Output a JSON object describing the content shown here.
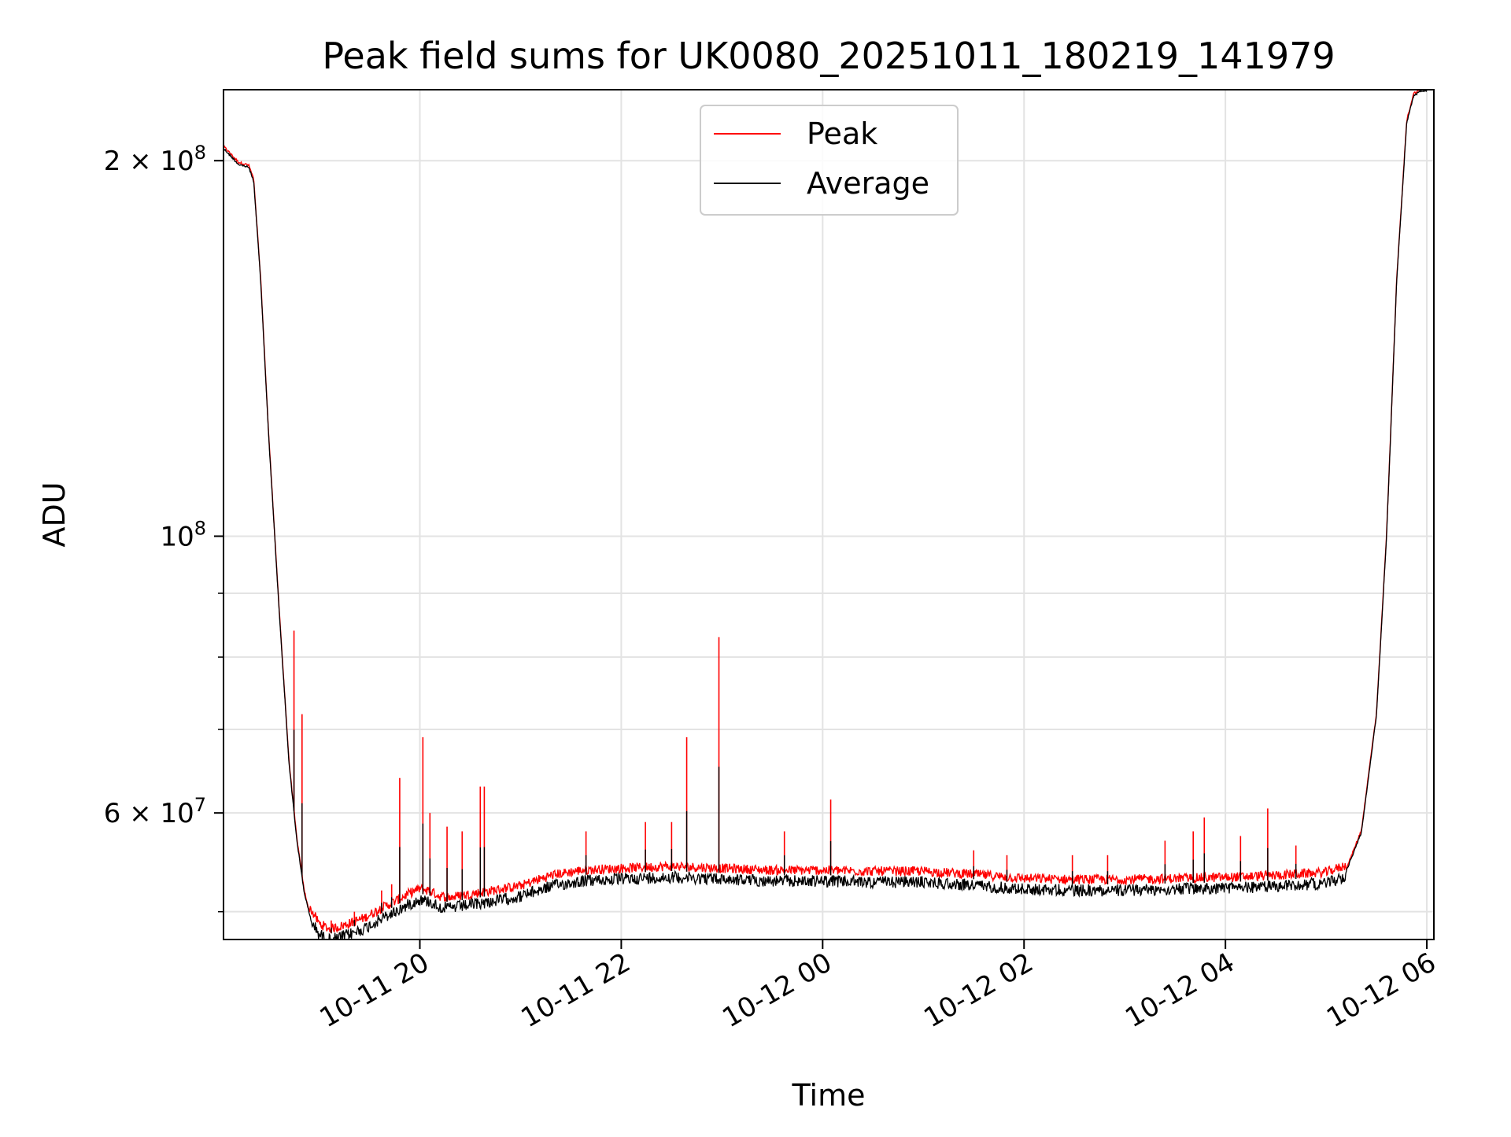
{
  "chart_data": {
    "type": "line",
    "title": "Peak field sums for UK0080_20251011_180219_141979",
    "xlabel": "Time",
    "ylabel": "ADU",
    "yscale": "log",
    "xlim": [
      18.05,
      30.07
    ],
    "ylim": [
      47500000,
      228000000
    ],
    "grid": true,
    "legend_position": "top-center",
    "x_ticks": [
      {
        "value": 20,
        "label": "10-11 20"
      },
      {
        "value": 22,
        "label": "10-11 22"
      },
      {
        "value": 24,
        "label": "10-12 00"
      },
      {
        "value": 26,
        "label": "10-12 02"
      },
      {
        "value": 28,
        "label": "10-12 04"
      },
      {
        "value": 30,
        "label": "10-12 06"
      }
    ],
    "y_ticks_major": [
      {
        "value": 60000000,
        "base": "6",
        "exp": "7"
      },
      {
        "value": 100000000,
        "base": "",
        "exp": "8"
      },
      {
        "value": 200000000,
        "base": "2",
        "exp": "8"
      }
    ],
    "y_ticks_minor": [
      50000000,
      70000000,
      80000000,
      90000000
    ],
    "average_baseline": {
      "x": [
        18.05,
        18.1,
        18.2,
        18.3,
        18.35,
        18.42,
        18.5,
        18.6,
        18.7,
        18.78,
        18.85,
        18.9,
        19.0,
        19.1,
        19.2,
        19.3,
        19.45,
        19.6,
        19.75,
        19.9,
        20.0,
        20.1,
        20.2,
        20.3,
        20.5,
        20.7,
        21.0,
        21.3,
        21.6,
        22.0,
        22.5,
        23.0,
        23.5,
        24.0,
        24.5,
        25.0,
        25.5,
        26.0,
        26.5,
        27.0,
        27.5,
        28.0,
        28.5,
        29.0,
        29.2,
        29.35,
        29.5,
        29.6,
        29.7,
        29.8,
        29.87,
        29.95,
        30.0
      ],
      "y": [
        205000000,
        203000000,
        199000000,
        198000000,
        193000000,
        160000000,
        120000000,
        88000000,
        66000000,
        57000000,
        52000000,
        50000000,
        48500000,
        48000000,
        48200000,
        48500000,
        49000000,
        49800000,
        50500000,
        51300000,
        51700000,
        51500000,
        51000000,
        50900000,
        51200000,
        51500000,
        52000000,
        53000000,
        53500000,
        53700000,
        53900000,
        53700000,
        53500000,
        53500000,
        53400000,
        53400000,
        53100000,
        52700000,
        52600000,
        52600000,
        52700000,
        52800000,
        53000000,
        53300000,
        54000000,
        58000000,
        72000000,
        100000000,
        160000000,
        215000000,
        226000000,
        228000000,
        228000000
      ]
    },
    "series": [
      {
        "name": "Peak",
        "color": "#ff0000"
      },
      {
        "name": "Average",
        "color": "#000000"
      }
    ],
    "peak_spikes": [
      {
        "x": 18.75,
        "y": 84000000
      },
      {
        "x": 18.83,
        "y": 72000000
      },
      {
        "x": 19.12,
        "y": 49200000
      },
      {
        "x": 19.35,
        "y": 50000000
      },
      {
        "x": 19.62,
        "y": 52000000
      },
      {
        "x": 19.72,
        "y": 52600000
      },
      {
        "x": 19.8,
        "y": 64000000
      },
      {
        "x": 20.03,
        "y": 69000000
      },
      {
        "x": 20.1,
        "y": 60000000
      },
      {
        "x": 20.27,
        "y": 58500000
      },
      {
        "x": 20.42,
        "y": 58000000
      },
      {
        "x": 20.6,
        "y": 63000000
      },
      {
        "x": 20.64,
        "y": 63000000
      },
      {
        "x": 21.65,
        "y": 58000000
      },
      {
        "x": 22.24,
        "y": 59000000
      },
      {
        "x": 22.5,
        "y": 59000000
      },
      {
        "x": 22.65,
        "y": 69000000
      },
      {
        "x": 22.97,
        "y": 83000000
      },
      {
        "x": 23.62,
        "y": 58000000
      },
      {
        "x": 24.08,
        "y": 61500000
      },
      {
        "x": 25.5,
        "y": 56000000
      },
      {
        "x": 25.83,
        "y": 55500000
      },
      {
        "x": 26.48,
        "y": 55500000
      },
      {
        "x": 26.83,
        "y": 55500000
      },
      {
        "x": 27.4,
        "y": 57000000
      },
      {
        "x": 27.68,
        "y": 58000000
      },
      {
        "x": 27.79,
        "y": 59500000
      },
      {
        "x": 28.15,
        "y": 57500000
      },
      {
        "x": 28.42,
        "y": 60500000
      },
      {
        "x": 28.7,
        "y": 56500000
      }
    ]
  },
  "legend": {
    "items": [
      {
        "label": "Peak",
        "color": "#ff0000"
      },
      {
        "label": "Average",
        "color": "#000000"
      }
    ]
  }
}
